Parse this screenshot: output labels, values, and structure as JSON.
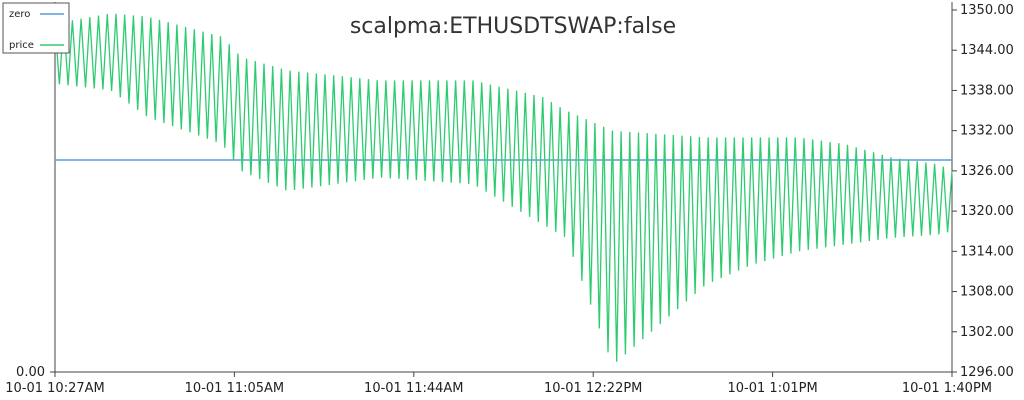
{
  "chart_data": {
    "type": "line",
    "title": "scalpma:ETHUSDTSWAP:false",
    "legend": {
      "placement": "top-left",
      "entries": [
        "zero",
        "price"
      ]
    },
    "x_tick_labels": [
      "10-01 10:27AM",
      "10-01 11:05AM",
      "10-01 11:44AM",
      "10-01 12:22PM",
      "10-01 1:01PM",
      "10-01 1:40PM"
    ],
    "x_range": [
      "10-01 10:27AM",
      "10-01 1:40PM"
    ],
    "left_axis": {
      "tick_labels": [
        "0.00"
      ],
      "range_min": 0
    },
    "right_axis": {
      "tick_labels": [
        "1296.00",
        "1302.00",
        "1308.00",
        "1314.00",
        "1320.00",
        "1326.00",
        "1332.00",
        "1338.00",
        "1344.00",
        "1350.00"
      ],
      "ylim": [
        1296,
        1350
      ]
    },
    "grid": false,
    "colors": {
      "zero": "#5b9bd5",
      "price": "#2ecc71"
    },
    "series": [
      {
        "name": "zero",
        "axis": "left",
        "x": [
          "10-01 10:27AM",
          "10-01 1:40PM"
        ],
        "values": [
          0,
          0
        ]
      },
      {
        "name": "price",
        "axis": "right",
        "minutes_from": "10-01 10:27AM",
        "envelope_x_min": [
          0,
          12,
          20,
          36,
          40,
          50,
          70,
          90,
          105,
          110,
          120,
          140,
          150,
          160,
          170,
          180,
          190,
          193
        ],
        "envelope_upper": [
          1348,
          1349.5,
          1349,
          1346,
          1343,
          1341,
          1339.5,
          1339.5,
          1337,
          1335,
          1332,
          1331,
          1331,
          1331,
          1330,
          1328,
          1327,
          1326
        ],
        "envelope_lower": [
          1339,
          1338,
          1334,
          1330,
          1326,
          1323,
          1325,
          1324,
          1318,
          1316,
          1297,
          1309,
          1312,
          1314,
          1315,
          1316,
          1316.5,
          1317
        ]
      }
    ]
  }
}
